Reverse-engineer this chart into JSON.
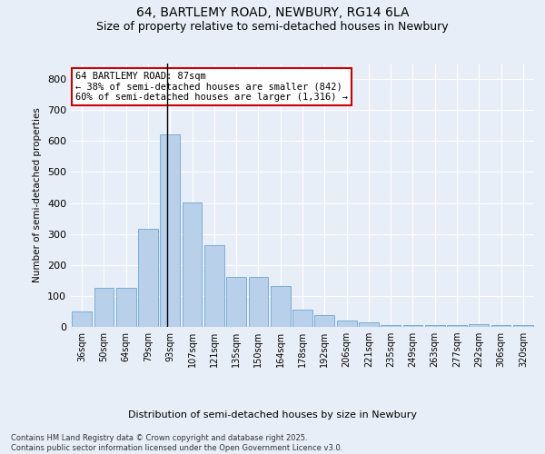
{
  "title_line1": "64, BARTLEMY ROAD, NEWBURY, RG14 6LA",
  "title_line2": "Size of property relative to semi-detached houses in Newbury",
  "xlabel": "Distribution of semi-detached houses by size in Newbury",
  "ylabel": "Number of semi-detached properties",
  "categories": [
    "36sqm",
    "50sqm",
    "64sqm",
    "79sqm",
    "93sqm",
    "107sqm",
    "121sqm",
    "135sqm",
    "150sqm",
    "164sqm",
    "178sqm",
    "192sqm",
    "206sqm",
    "221sqm",
    "235sqm",
    "249sqm",
    "263sqm",
    "277sqm",
    "292sqm",
    "306sqm",
    "320sqm"
  ],
  "values": [
    50,
    126,
    126,
    318,
    622,
    403,
    265,
    160,
    160,
    133,
    55,
    37,
    20,
    14,
    5,
    5,
    5,
    5,
    8,
    7,
    5
  ],
  "bar_color": "#b8d0ea",
  "bar_edge_color": "#7aadd4",
  "vline_x_index": 3.85,
  "annotation_title": "64 BARTLEMY ROAD: 87sqm",
  "annotation_line1": "← 38% of semi-detached houses are smaller (842)",
  "annotation_line2": "60% of semi-detached houses are larger (1,316) →",
  "ylim": [
    0,
    850
  ],
  "yticks": [
    0,
    100,
    200,
    300,
    400,
    500,
    600,
    700,
    800
  ],
  "footnote_line1": "Contains HM Land Registry data © Crown copyright and database right 2025.",
  "footnote_line2": "Contains public sector information licensed under the Open Government Licence v3.0.",
  "bg_color": "#e8eef8",
  "plot_bg_color": "#e8eef8",
  "grid_color": "#ffffff",
  "title_fontsize": 10,
  "subtitle_fontsize": 9,
  "footnote_fontsize": 6,
  "annotation_box_color": "#cc0000"
}
